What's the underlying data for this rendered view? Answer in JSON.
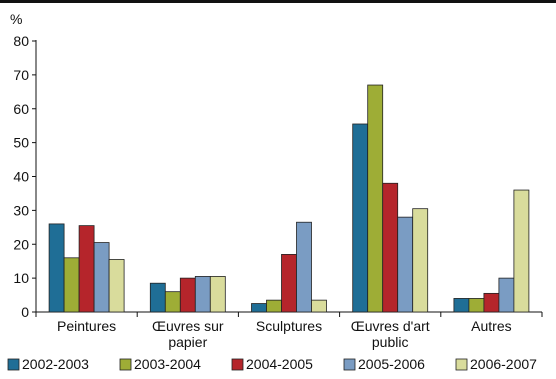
{
  "chart_data": {
    "type": "bar",
    "y_unit": "%",
    "ylim": [
      0,
      80
    ],
    "yticks": [
      0,
      10,
      20,
      30,
      40,
      50,
      60,
      70,
      80
    ],
    "categories": [
      [
        "Peintures"
      ],
      [
        "Œuvres sur",
        "papier"
      ],
      [
        "Sculptures"
      ],
      [
        "Œuvres d'art",
        "public"
      ],
      [
        "Autres"
      ]
    ],
    "series": [
      {
        "name": "2002-2003",
        "color": "#1f6e96",
        "values": [
          26,
          8.5,
          2.5,
          55.5,
          4
        ]
      },
      {
        "name": "2003-2004",
        "color": "#9ead36",
        "values": [
          16,
          6,
          3.5,
          67,
          4
        ]
      },
      {
        "name": "2004-2005",
        "color": "#b5252b",
        "values": [
          25.5,
          10,
          17,
          38,
          5.5
        ]
      },
      {
        "name": "2005-2006",
        "color": "#7a9cc3",
        "values": [
          20.5,
          10.5,
          26.5,
          28,
          10
        ]
      },
      {
        "name": "2006-2007",
        "color": "#d9dc9c",
        "values": [
          15.5,
          10.5,
          3.5,
          30.5,
          36
        ]
      }
    ],
    "legend_position": "bottom",
    "grid": false
  }
}
